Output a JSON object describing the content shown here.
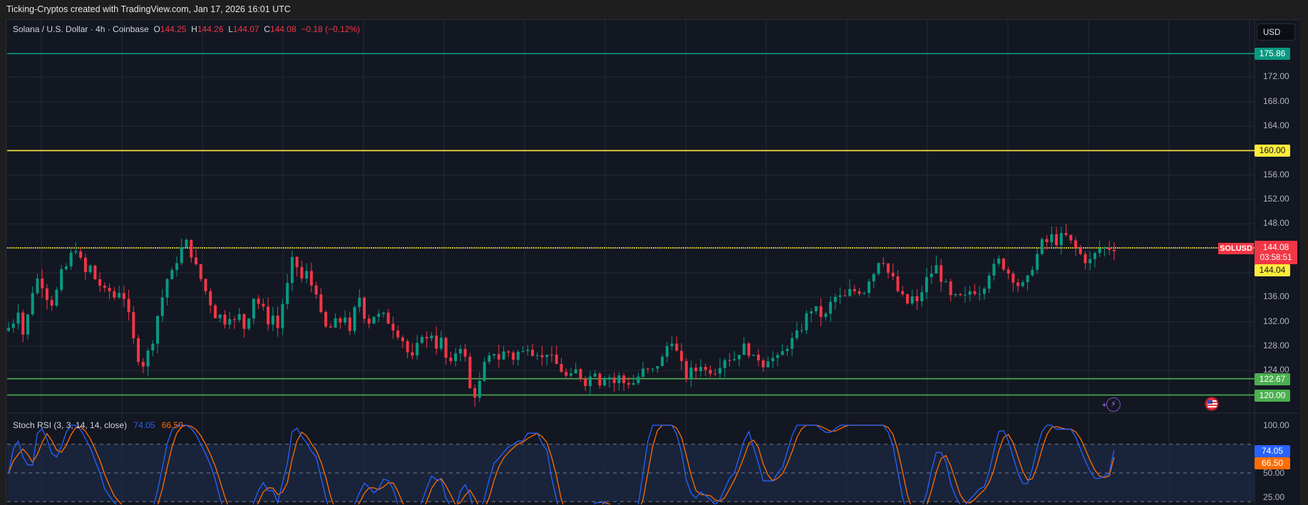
{
  "caption": "Ticking-Cryptos created with TradingView.com, Jan 17, 2026 16:01 UTC",
  "legend": {
    "symbol": "Solana / U.S. Dollar · 4h · Coinbase",
    "o_label": "O",
    "o": "144.25",
    "h_label": "H",
    "h": "144.26",
    "l_label": "L",
    "l": "144.07",
    "c_label": "C",
    "c": "144.08",
    "change": "−0.18 (−0.12%)"
  },
  "price_axis": {
    "currency_button": "USD",
    "ticks": [
      "172.00",
      "168.00",
      "164.00",
      "156.00",
      "152.00",
      "148.00",
      "136.00",
      "132.00",
      "128.00",
      "124.00"
    ],
    "symbol_tag": "SOLUSD",
    "last_price": "144.08",
    "countdown": "03:58:51",
    "prev_close_tag": "144.04",
    "levels": [
      {
        "label": "175.86",
        "value": 175.86,
        "color": "#089981"
      },
      {
        "label": "160.00",
        "value": 160.0,
        "color": "#ffeb3b"
      },
      {
        "label": "122.67",
        "value": 122.67,
        "color": "#4caf50"
      },
      {
        "label": "120.00",
        "value": 120.0,
        "color": "#4caf50"
      }
    ]
  },
  "rsi": {
    "title": "Stoch RSI (3, 3, 14, 14, close)",
    "k_value": "74.05",
    "d_value": "66.50",
    "ticks": [
      "100.00",
      "50.00",
      "25.00"
    ],
    "k_color": "#2962ff",
    "d_color": "#ff6d00"
  },
  "colors": {
    "up": "#089981",
    "down": "#f23645",
    "bg": "#131722",
    "grid": "#242836",
    "last_line": "#ffeb3b"
  },
  "chart_data": {
    "type": "candlestick",
    "title": "Solana / U.S. Dollar · 4h · Coinbase",
    "ylabel": "USD",
    "ylim": [
      116,
      178
    ],
    "horizontal_levels": [
      175.86,
      160.0,
      144.08,
      122.67,
      120.0
    ],
    "last": {
      "open": 144.25,
      "high": 144.26,
      "low": 144.07,
      "close": 144.08,
      "change": -0.18,
      "change_pct": -0.12
    },
    "close_path": [
      131,
      132,
      134,
      130,
      133,
      137,
      139,
      138,
      136,
      135,
      137,
      140,
      141,
      143,
      144,
      142,
      140,
      141,
      139,
      138,
      137,
      137,
      136,
      137,
      136,
      133,
      129,
      126,
      125,
      127,
      129,
      133,
      136,
      139,
      140,
      142,
      144,
      145,
      143,
      141,
      139,
      137,
      135,
      133,
      133,
      132,
      133,
      132,
      133,
      131,
      133,
      136,
      135,
      134,
      132,
      133,
      131,
      135,
      138,
      142,
      141,
      139,
      140,
      138,
      137,
      133,
      131,
      131,
      132,
      132,
      133,
      130,
      134,
      136,
      133,
      132,
      133,
      133,
      133,
      132,
      131,
      130,
      129,
      127,
      126,
      128,
      130,
      129,
      130,
      128,
      129,
      126,
      125,
      127,
      128,
      126,
      121,
      120,
      122,
      125,
      126,
      127,
      126,
      127,
      127,
      126,
      127,
      127,
      128,
      127,
      127,
      126,
      127,
      126,
      125,
      124,
      123,
      123,
      124,
      123,
      122,
      123,
      124,
      122,
      123,
      123,
      122,
      123,
      122,
      122,
      122,
      123,
      124,
      124,
      124,
      125,
      126,
      128,
      129,
      127,
      125,
      123,
      124,
      124,
      125,
      124,
      124,
      124,
      125,
      126,
      126,
      126,
      127,
      128,
      127,
      126,
      126,
      125,
      126,
      126,
      126,
      127,
      128,
      129,
      130,
      131,
      133,
      134,
      134,
      133,
      133,
      135,
      136,
      136,
      136,
      137,
      137,
      137,
      137,
      139,
      140,
      142,
      142,
      140,
      139,
      137,
      136,
      135,
      136,
      135,
      137,
      139,
      140,
      141,
      139,
      138,
      136,
      136,
      136,
      136,
      137,
      137,
      137,
      138,
      140,
      141,
      142,
      141,
      140,
      139,
      138,
      138,
      139,
      141,
      143,
      145,
      145,
      146,
      145,
      146,
      146,
      145,
      144,
      143,
      142,
      142,
      143,
      144,
      144,
      144,
      144
    ]
  }
}
